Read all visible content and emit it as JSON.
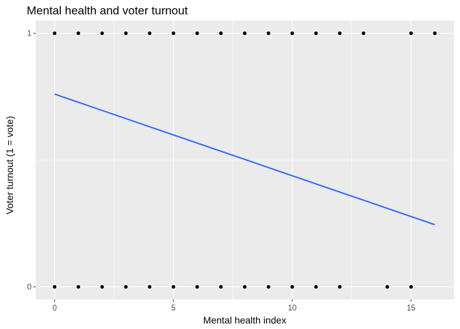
{
  "chart_data": {
    "type": "scatter",
    "title": "Mental health and voter turnout",
    "xlabel": "Mental health index",
    "ylabel": "Voter turnout (1 = vote)",
    "xlim": [
      -0.8,
      16.8
    ],
    "ylim": [
      -0.05,
      1.05
    ],
    "x_ticks": [
      0,
      5,
      10,
      15
    ],
    "x_tick_labels": [
      "0",
      "5",
      "10",
      "15"
    ],
    "y_ticks": [
      0,
      1
    ],
    "y_tick_labels": [
      "0",
      "1"
    ],
    "x_minor_gridlines": [
      2.5,
      7.5,
      12.5
    ],
    "y_minor_gridlines": [
      0.5
    ],
    "grid": true,
    "points": [
      {
        "x": 0,
        "y": 1
      },
      {
        "x": 1,
        "y": 1
      },
      {
        "x": 2,
        "y": 1
      },
      {
        "x": 3,
        "y": 1
      },
      {
        "x": 4,
        "y": 1
      },
      {
        "x": 5,
        "y": 1
      },
      {
        "x": 6,
        "y": 1
      },
      {
        "x": 7,
        "y": 1
      },
      {
        "x": 8,
        "y": 1
      },
      {
        "x": 9,
        "y": 1
      },
      {
        "x": 10,
        "y": 1
      },
      {
        "x": 11,
        "y": 1
      },
      {
        "x": 12,
        "y": 1
      },
      {
        "x": 13,
        "y": 1
      },
      {
        "x": 15,
        "y": 1
      },
      {
        "x": 16,
        "y": 1
      },
      {
        "x": 0,
        "y": 0
      },
      {
        "x": 1,
        "y": 0
      },
      {
        "x": 2,
        "y": 0
      },
      {
        "x": 3,
        "y": 0
      },
      {
        "x": 4,
        "y": 0
      },
      {
        "x": 5,
        "y": 0
      },
      {
        "x": 6,
        "y": 0
      },
      {
        "x": 7,
        "y": 0
      },
      {
        "x": 8,
        "y": 0
      },
      {
        "x": 9,
        "y": 0
      },
      {
        "x": 10,
        "y": 0
      },
      {
        "x": 11,
        "y": 0
      },
      {
        "x": 12,
        "y": 0
      },
      {
        "x": 14,
        "y": 0
      },
      {
        "x": 15,
        "y": 0
      }
    ],
    "fit_line": {
      "x": [
        0,
        16
      ],
      "y": [
        0.76,
        0.245
      ]
    },
    "colors": {
      "panel_background": "#ebebeb",
      "gridline": "#ffffff",
      "point": "#000000",
      "fit_line": "#3366ff"
    }
  }
}
